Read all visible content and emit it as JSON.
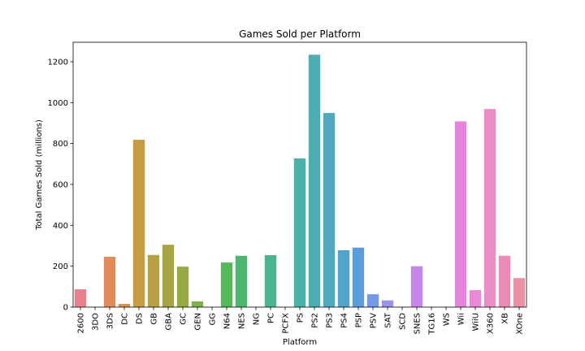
{
  "chart_data": {
    "type": "bar",
    "title": "Games Sold per Platform",
    "xlabel": "Platform",
    "ylabel": "Total Games Sold (millions)",
    "ylim": [
      0,
      1295
    ],
    "yticks": [
      0,
      200,
      400,
      600,
      800,
      1000,
      1200
    ],
    "grid": false,
    "legend": "none",
    "categories": [
      "2600",
      "3DO",
      "3DS",
      "DC",
      "DS",
      "GB",
      "GBA",
      "GC",
      "GEN",
      "GG",
      "N64",
      "NES",
      "NG",
      "PC",
      "PCFX",
      "PS",
      "PS2",
      "PS3",
      "PS4",
      "PSP",
      "PSV",
      "SAT",
      "SCD",
      "SNES",
      "TG16",
      "WS",
      "Wii",
      "WiiU",
      "X360",
      "XB",
      "XOne"
    ],
    "values": [
      87,
      0.1,
      246,
      16,
      818,
      255,
      305,
      198,
      28,
      0.04,
      218,
      251,
      1.4,
      254,
      0.03,
      727,
      1234,
      949,
      278,
      291,
      63,
      33,
      1.9,
      200,
      0.2,
      1.4,
      908,
      83,
      969,
      251,
      142
    ],
    "colors": [
      "#e8808e",
      "#e6836b",
      "#e18a5c",
      "#d89150",
      "#c79a43",
      "#b7a042",
      "#a7a543",
      "#95aa45",
      "#7fb04a",
      "#68b64f",
      "#55b95a",
      "#4cb66e",
      "#4bb580",
      "#4bb38f",
      "#4cb29a",
      "#4ab1a6",
      "#4caeb2",
      "#4fa9bd",
      "#53a4cc",
      "#5a9ddc",
      "#7599e8",
      "#9a94ea",
      "#b38dea",
      "#c386ea",
      "#d37fe6",
      "#e07de2",
      "#e583dd",
      "#e88ad5",
      "#e98fc6",
      "#ea8bb5",
      "#e991a5"
    ]
  }
}
